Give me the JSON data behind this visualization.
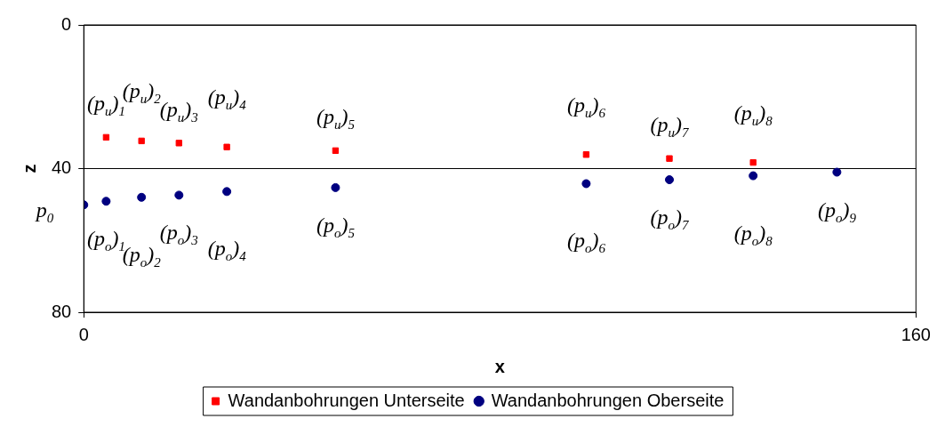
{
  "chart_data": {
    "type": "scatter",
    "xlabel": "x",
    "ylabel": "z",
    "xlim": [
      0,
      160
    ],
    "xticks": [
      0,
      160
    ],
    "ylim": [
      80,
      0
    ],
    "yticks": [
      0,
      40,
      80
    ],
    "grid": "y",
    "legend": "bottom",
    "series": [
      {
        "name": "Wandanbohrungen Unterseite",
        "color": "#ff0000",
        "marker": "square",
        "x": [
          4.3,
          11.1,
          18.3,
          27.5,
          48.4,
          96.6,
          112.6,
          128.7
        ],
        "values": [
          31.3,
          32.3,
          32.9,
          34.0,
          35.0,
          36.1,
          37.2,
          38.3
        ]
      },
      {
        "name": "Wandanbohrungen Oberseite",
        "color": "#000080",
        "marker": "circle",
        "x": [
          0,
          4.3,
          11.1,
          18.3,
          27.5,
          48.4,
          96.6,
          112.6,
          128.7,
          144.8
        ],
        "values": [
          50.1,
          49.1,
          48.0,
          47.4,
          46.4,
          45.3,
          44.2,
          43.1,
          42.0,
          41.0
        ]
      }
    ],
    "annotations": [
      {
        "text": "(p$_{u}$)$_{1}$",
        "x": 4.3,
        "y": 31.3
      },
      {
        "text": "(p$_{u}$)$_{2}$",
        "x": 11.1,
        "y": 32.3
      },
      {
        "text": "(p$_{u}$)$_{3}$",
        "x": 18.3,
        "y": 32.9
      },
      {
        "text": "(p$_{u}$)$_{4}$",
        "x": 27.5,
        "y": 34.0
      },
      {
        "text": "(p$_{u}$)$_{5}$",
        "x": 48.4,
        "y": 35.0
      },
      {
        "text": "(p$_{u}$)$_{6}$",
        "x": 96.6,
        "y": 36.1
      },
      {
        "text": "(p$_{u}$)$_{7}$",
        "x": 112.6,
        "y": 37.2
      },
      {
        "text": "(p$_{u}$)$_{8}$",
        "x": 128.7,
        "y": 38.3
      },
      {
        "text": "p$_{0}$",
        "x": 0,
        "y": 50.1
      },
      {
        "text": "(p$_{o}$)$_{1}$",
        "x": 4.3,
        "y": 49.1
      },
      {
        "text": "(p$_{o}$)$_{2}$",
        "x": 11.1,
        "y": 48.0
      },
      {
        "text": "(p$_{o}$)$_{3}$",
        "x": 18.3,
        "y": 47.4
      },
      {
        "text": "(p$_{o}$)$_{4}$",
        "x": 27.5,
        "y": 46.4
      },
      {
        "text": "(p$_{o}$)$_{5}$",
        "x": 48.4,
        "y": 45.3
      },
      {
        "text": "(p$_{o}$)$_{6}$",
        "x": 96.6,
        "y": 44.2
      },
      {
        "text": "(p$_{o}$)$_{7}$",
        "x": 112.6,
        "y": 43.1
      },
      {
        "text": "(p$_{o}$)$_{8}$",
        "x": 128.7,
        "y": 42.0
      },
      {
        "text": "(p$_{o}$)$_{9}$",
        "x": 144.8,
        "y": 41.0
      }
    ]
  }
}
